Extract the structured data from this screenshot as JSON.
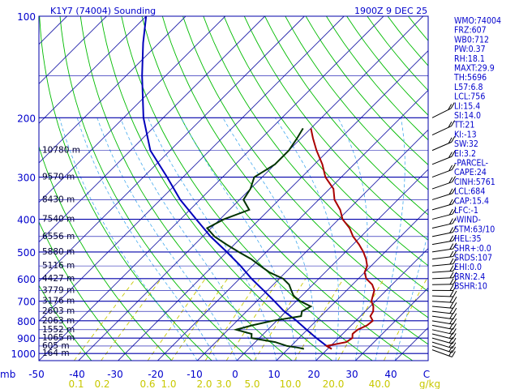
{
  "chart_data": {
    "type": "skew-t",
    "title": "K1Y7 (74004) Sounding",
    "valid_time": "1900Z  9 DEC 25",
    "pressure_ticks": [
      "100",
      "200",
      "300",
      "400",
      "500",
      "600",
      "700",
      "800",
      "900",
      "1000"
    ],
    "pressure_unit": "mb",
    "temperature_ticks": [
      "-50",
      "-40",
      "-30",
      "-20",
      "-10",
      "0",
      "10",
      "20",
      "30",
      "40",
      "C"
    ],
    "mixing_ratio_ticks": [
      "0.1",
      "0.2",
      "0.6",
      "1.0",
      "2.0",
      "3.0",
      "5.0",
      "10.0",
      "20.0",
      "40.0",
      "g/kg"
    ],
    "height_labels": [
      {
        "p": 250,
        "label": "10780 m"
      },
      {
        "p": 300,
        "label": "9570 m"
      },
      {
        "p": 350,
        "label": "8430 m"
      },
      {
        "p": 400,
        "label": "7540 m"
      },
      {
        "p": 450,
        "label": "6556 m"
      },
      {
        "p": 500,
        "label": "5880 m"
      },
      {
        "p": 550,
        "label": "5116 m"
      },
      {
        "p": 600,
        "label": "4427 m"
      },
      {
        "p": 650,
        "label": "3779 m"
      },
      {
        "p": 700,
        "label": "3176 m"
      },
      {
        "p": 750,
        "label": "2603 m"
      },
      {
        "p": 800,
        "label": "2063 m"
      },
      {
        "p": 850,
        "label": "1552 m"
      },
      {
        "p": 900,
        "label": "1065 m"
      },
      {
        "p": 950,
        "label": "605 m"
      },
      {
        "p": 1000,
        "label": "164 m"
      }
    ],
    "temperature_profile": [
      [
        969,
        21
      ],
      [
        960,
        20
      ],
      [
        950,
        19
      ],
      [
        925,
        23
      ],
      [
        900,
        23.5
      ],
      [
        875,
        22.5
      ],
      [
        850,
        22.7
      ],
      [
        825,
        24
      ],
      [
        800,
        24.3
      ],
      [
        775,
        22.5
      ],
      [
        750,
        22
      ],
      [
        725,
        20.8
      ],
      [
        700,
        19
      ],
      [
        675,
        18
      ],
      [
        650,
        17
      ],
      [
        625,
        15
      ],
      [
        600,
        12
      ],
      [
        575,
        10
      ],
      [
        550,
        9
      ],
      [
        525,
        7
      ],
      [
        500,
        4.5
      ],
      [
        475,
        1.5
      ],
      [
        450,
        -2
      ],
      [
        425,
        -5
      ],
      [
        400,
        -9
      ],
      [
        375,
        -12
      ],
      [
        350,
        -16
      ],
      [
        325,
        -19
      ],
      [
        300,
        -24
      ],
      [
        275,
        -28
      ],
      [
        250,
        -33
      ],
      [
        230,
        -37
      ],
      [
        215,
        -40
      ]
    ],
    "dewpoint_profile": [
      [
        969,
        14
      ],
      [
        960,
        12
      ],
      [
        950,
        9
      ],
      [
        925,
        5
      ],
      [
        900,
        -2
      ],
      [
        875,
        -3
      ],
      [
        850,
        -8
      ],
      [
        825,
        -5
      ],
      [
        800,
        -1
      ],
      [
        775,
        5
      ],
      [
        750,
        4
      ],
      [
        725,
        5
      ],
      [
        700,
        1
      ],
      [
        675,
        -2
      ],
      [
        650,
        -4
      ],
      [
        625,
        -6
      ],
      [
        600,
        -9
      ],
      [
        575,
        -14
      ],
      [
        550,
        -18
      ],
      [
        525,
        -22
      ],
      [
        500,
        -27
      ],
      [
        475,
        -32
      ],
      [
        450,
        -37
      ],
      [
        425,
        -41
      ],
      [
        400,
        -39
      ],
      [
        375,
        -35
      ],
      [
        350,
        -39
      ],
      [
        325,
        -40
      ],
      [
        300,
        -42
      ],
      [
        275,
        -40
      ],
      [
        250,
        -40
      ],
      [
        230,
        -41
      ],
      [
        215,
        -42
      ]
    ],
    "parcel_profile": [
      [
        969,
        21
      ],
      [
        950,
        19
      ],
      [
        900,
        14.4
      ],
      [
        850,
        9.8
      ],
      [
        800,
        5
      ],
      [
        750,
        -0.5
      ],
      [
        700,
        -5.5
      ],
      [
        650,
        -11
      ],
      [
        600,
        -17
      ],
      [
        550,
        -23
      ],
      [
        500,
        -30
      ],
      [
        450,
        -38
      ],
      [
        400,
        -46
      ],
      [
        350,
        -55
      ],
      [
        300,
        -64
      ],
      [
        250,
        -75
      ],
      [
        200,
        -85
      ],
      [
        150,
        -96
      ],
      [
        120,
        -104
      ],
      [
        100,
        -110
      ]
    ],
    "indices": [
      "WMO:74004",
      "FRZ:607",
      "WB0:712",
      "PW:0.37",
      "RH:18.1",
      "MAXT:29.9",
      "TH:5696",
      "L57:6.8",
      "LCL:756",
      "LI:15.4",
      "SI:14.0",
      "TT:21",
      "KI:-13",
      "SW:32",
      "EI:3.2",
      "-PARCEL-",
      "CAPE:24",
      "CINH:5761",
      "LCL:684",
      "CAP:15.4",
      "LFC:-1",
      "-WIND-",
      "STM:63/10",
      "HEL:35",
      "SHR+:0.0",
      "SRDS:107",
      "EHI:0.0",
      "BRN:2.4",
      "BSHR:10"
    ]
  },
  "colors": {
    "isobar": "#0000aa",
    "isotherm": "#2222aa",
    "dry_adiabat": "#00bb00",
    "moist_adiabat": "#44aaee",
    "mixing_ratio": "#c8c800",
    "temperature": "#aa0000",
    "dewpoint": "#003300",
    "parcel": "#0000bb",
    "text": "#0000cc",
    "wind": "#000000"
  }
}
